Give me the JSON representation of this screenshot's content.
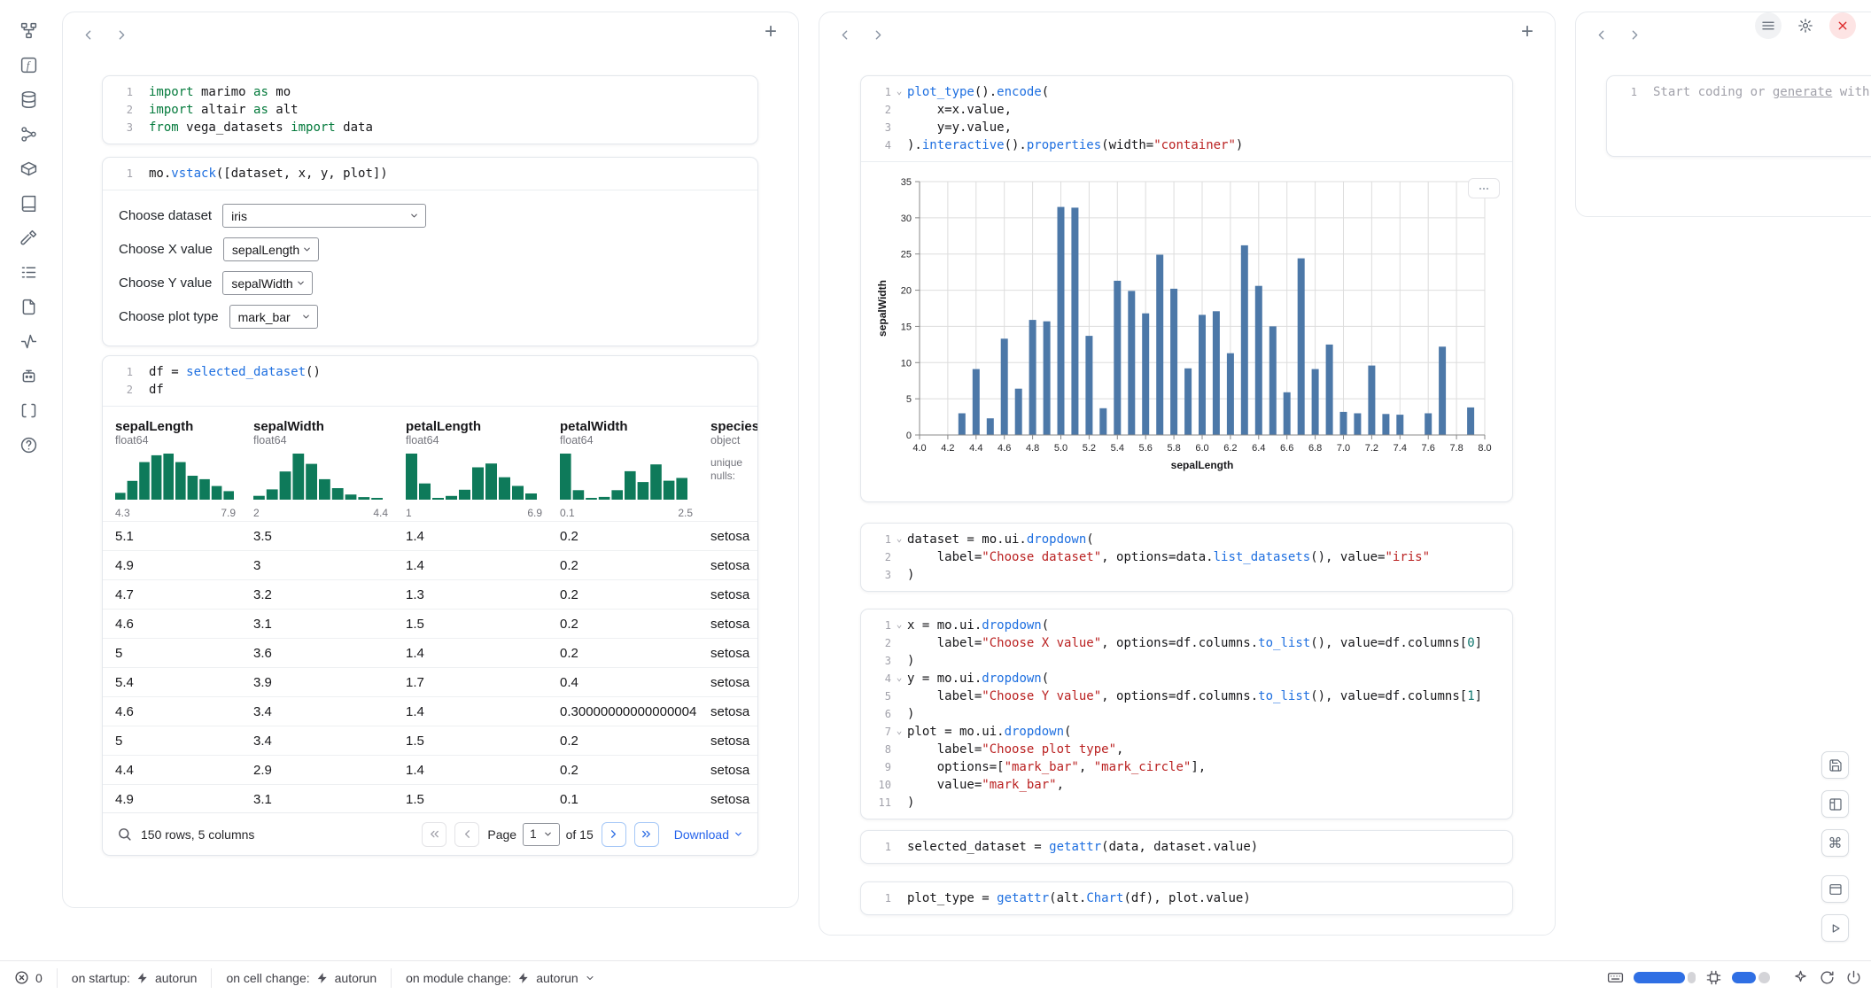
{
  "rail": {
    "icons": [
      "files",
      "variables",
      "datasources",
      "dependencies",
      "packages",
      "documentation",
      "tools",
      "logs",
      "documents",
      "tracing",
      "chat",
      "snippets",
      "help"
    ]
  },
  "cells": {
    "imports": {
      "lines": [
        "import marimo as mo",
        "import altair as alt",
        "from vega_datasets import data"
      ]
    },
    "vstack": {
      "lines": [
        "mo.vstack([dataset, x, y, plot])"
      ]
    },
    "df": {
      "lines": [
        "df = selected_dataset()",
        "df"
      ]
    },
    "plot": {
      "lines": [
        "plot_type().encode(",
        "    x=x.value,",
        "    y=y.value,",
        ").interactive().properties(width=\"container\")"
      ]
    },
    "dataset_dropdown": {
      "lines": [
        "dataset = mo.ui.dropdown(",
        "    label=\"Choose dataset\", options=data.list_datasets(), value=\"iris\"",
        ")"
      ]
    },
    "xy_dropdowns": {
      "lines": [
        "x = mo.ui.dropdown(",
        "    label=\"Choose X value\", options=df.columns.to_list(), value=df.columns[0]",
        ")",
        "y = mo.ui.dropdown(",
        "    label=\"Choose Y value\", options=df.columns.to_list(), value=df.columns[1]",
        ")",
        "plot = mo.ui.dropdown(",
        "    label=\"Choose plot type\",",
        "    options=[\"mark_bar\", \"mark_circle\"],",
        "    value=\"mark_bar\",",
        ")"
      ]
    },
    "selected_dataset": {
      "lines": [
        "selected_dataset = getattr(data, dataset.value)"
      ]
    },
    "plot_type": {
      "lines": [
        "plot_type = getattr(alt.Chart(df), plot.value)"
      ]
    }
  },
  "new_cell": {
    "placeholder_prefix": "Start coding or ",
    "placeholder_link": "generate",
    "placeholder_suffix": " with AI"
  },
  "ui_controls": [
    {
      "name": "dataset-dropdown",
      "label": "Choose dataset",
      "value": "iris"
    },
    {
      "name": "x-dropdown",
      "label": "Choose X value",
      "value": "sepalLength"
    },
    {
      "name": "y-dropdown",
      "label": "Choose Y value",
      "value": "sepalWidth"
    },
    {
      "name": "plot-type-dropdown",
      "label": "Choose plot type",
      "value": "mark_bar"
    }
  ],
  "table": {
    "columns": [
      {
        "name": "sepalLength",
        "dtype": "float64",
        "min": "4.3",
        "max": "7.9",
        "hist": [
          4,
          11,
          22,
          26,
          27,
          22,
          14,
          12,
          8,
          5
        ]
      },
      {
        "name": "sepalWidth",
        "dtype": "float64",
        "min": "2",
        "max": "4.4",
        "hist": [
          3,
          8,
          22,
          36,
          28,
          16,
          9,
          4,
          2,
          1
        ]
      },
      {
        "name": "petalLength",
        "dtype": "float64",
        "min": "1",
        "max": "6.9",
        "hist": [
          37,
          13,
          1,
          3,
          8,
          26,
          29,
          18,
          11,
          5
        ]
      },
      {
        "name": "petalWidth",
        "dtype": "float64",
        "min": "0.1",
        "max": "2.5",
        "hist": [
          34,
          7,
          1,
          2,
          7,
          21,
          13,
          26,
          14,
          16
        ]
      },
      {
        "name": "species",
        "dtype": "object",
        "stats": [
          "unique",
          "nulls:"
        ]
      }
    ],
    "rows": [
      [
        "5.1",
        "3.5",
        "1.4",
        "0.2",
        "setosa"
      ],
      [
        "4.9",
        "3",
        "1.4",
        "0.2",
        "setosa"
      ],
      [
        "4.7",
        "3.2",
        "1.3",
        "0.2",
        "setosa"
      ],
      [
        "4.6",
        "3.1",
        "1.5",
        "0.2",
        "setosa"
      ],
      [
        "5",
        "3.6",
        "1.4",
        "0.2",
        "setosa"
      ],
      [
        "5.4",
        "3.9",
        "1.7",
        "0.4",
        "setosa"
      ],
      [
        "4.6",
        "3.4",
        "1.4",
        "0.30000000000000004",
        "setosa"
      ],
      [
        "5",
        "3.4",
        "1.5",
        "0.2",
        "setosa"
      ],
      [
        "4.4",
        "2.9",
        "1.4",
        "0.2",
        "setosa"
      ],
      [
        "4.9",
        "3.1",
        "1.5",
        "0.1",
        "setosa"
      ]
    ],
    "footer": {
      "summary": "150 rows, 5 columns",
      "page_label": "Page",
      "page_value": "1",
      "page_total": "of 15",
      "download_label": "Download"
    }
  },
  "chart_data": {
    "type": "bar",
    "title": "",
    "xlabel": "sepalLength",
    "ylabel": "sepalWidth",
    "xlim": [
      4.0,
      8.0
    ],
    "ylim": [
      0,
      35
    ],
    "x_tick_step": 0.2,
    "y_ticks": [
      0,
      5,
      10,
      15,
      20,
      25,
      30,
      35
    ],
    "bar_color": "#4c78a8",
    "grid": true,
    "x": [
      4.3,
      4.4,
      4.5,
      4.6,
      4.7,
      4.8,
      4.9,
      5.0,
      5.1,
      5.2,
      5.3,
      5.4,
      5.5,
      5.6,
      5.7,
      5.8,
      5.9,
      6.0,
      6.1,
      6.2,
      6.3,
      6.4,
      6.5,
      6.6,
      6.7,
      6.8,
      6.9,
      7.0,
      7.1,
      7.2,
      7.3,
      7.4,
      7.6,
      7.7,
      7.9
    ],
    "y": [
      3.0,
      9.1,
      2.3,
      13.3,
      6.4,
      15.9,
      15.7,
      31.5,
      31.4,
      13.7,
      3.7,
      21.3,
      19.9,
      16.8,
      24.9,
      20.2,
      9.2,
      16.6,
      17.1,
      11.3,
      26.2,
      20.6,
      15.0,
      5.9,
      24.4,
      9.1,
      12.5,
      3.2,
      3.0,
      9.6,
      2.9,
      2.8,
      3.0,
      12.2,
      3.8
    ]
  },
  "statusbar": {
    "error_count": "0",
    "items": [
      {
        "label": "on startup:",
        "value": "autorun",
        "chevron": false
      },
      {
        "label": "on cell change:",
        "value": "autorun",
        "chevron": false
      },
      {
        "label": "on module change:",
        "value": "autorun",
        "chevron": true
      }
    ]
  }
}
